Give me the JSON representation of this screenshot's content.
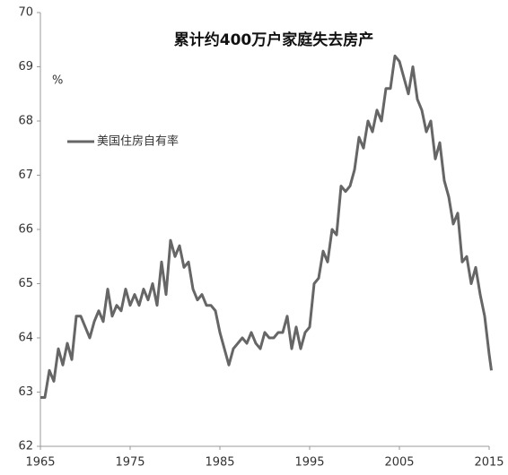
{
  "chart_data": {
    "type": "line",
    "title": "累计约400万户家庭失去房产",
    "y_label": "%",
    "x": [
      1965,
      1965.5,
      1966,
      1966.5,
      1967,
      1967.5,
      1968,
      1968.5,
      1969,
      1969.5,
      1970,
      1970.5,
      1971,
      1971.5,
      1972,
      1972.5,
      1973,
      1973.5,
      1974,
      1974.5,
      1975,
      1975.5,
      1976,
      1976.5,
      1977,
      1977.5,
      1978,
      1978.5,
      1979,
      1979.5,
      1980,
      1980.5,
      1981,
      1981.5,
      1982,
      1982.5,
      1983,
      1983.5,
      1984,
      1984.5,
      1985,
      1985.5,
      1986,
      1986.5,
      1987,
      1987.5,
      1988,
      1988.5,
      1989,
      1989.5,
      1990,
      1990.5,
      1991,
      1991.5,
      1992,
      1992.5,
      1993,
      1993.5,
      1994,
      1994.5,
      1995,
      1995.5,
      1996,
      1996.5,
      1997,
      1997.5,
      1998,
      1998.5,
      1999,
      1999.5,
      2000,
      2000.5,
      2001,
      2001.5,
      2002,
      2002.5,
      2003,
      2003.5,
      2004,
      2004.5,
      2005,
      2005.5,
      2006,
      2006.5,
      2007,
      2007.5,
      2008,
      2008.5,
      2009,
      2009.5,
      2010,
      2010.5,
      2011,
      2011.5,
      2012,
      2012.5,
      2013,
      2013.5,
      2014,
      2014.5,
      2015,
      2015.25
    ],
    "series": [
      {
        "name": "美国住房自有率",
        "color": "#666666",
        "values": [
          62.9,
          62.9,
          63.4,
          63.2,
          63.8,
          63.5,
          63.9,
          63.6,
          64.4,
          64.4,
          64.2,
          64.0,
          64.3,
          64.5,
          64.3,
          64.9,
          64.4,
          64.6,
          64.5,
          64.9,
          64.6,
          64.8,
          64.6,
          64.9,
          64.7,
          65.0,
          64.6,
          65.4,
          64.8,
          65.8,
          65.5,
          65.7,
          65.3,
          65.4,
          64.9,
          64.7,
          64.8,
          64.6,
          64.6,
          64.5,
          64.1,
          63.8,
          63.5,
          63.8,
          63.9,
          64.0,
          63.9,
          64.1,
          63.9,
          63.8,
          64.1,
          64.0,
          64.0,
          64.1,
          64.1,
          64.4,
          63.8,
          64.2,
          63.8,
          64.1,
          64.2,
          65.0,
          65.1,
          65.6,
          65.4,
          66.0,
          65.9,
          66.8,
          66.7,
          66.8,
          67.1,
          67.7,
          67.5,
          68.0,
          67.8,
          68.2,
          68.0,
          68.6,
          68.6,
          69.2,
          69.1,
          68.8,
          68.5,
          69.0,
          68.4,
          68.2,
          67.8,
          68.0,
          67.3,
          67.6,
          66.9,
          66.6,
          66.1,
          66.3,
          65.4,
          65.5,
          65.0,
          65.3,
          64.8,
          64.4,
          63.7,
          63.4
        ]
      }
    ],
    "xlim": [
      1965,
      2015
    ],
    "xticks": [
      1965,
      1975,
      1985,
      1995,
      2005,
      2015
    ],
    "ylim": [
      62,
      70
    ],
    "yticks": [
      62,
      63,
      64,
      65,
      66,
      67,
      68,
      69,
      70
    ],
    "legend": "upper left"
  }
}
